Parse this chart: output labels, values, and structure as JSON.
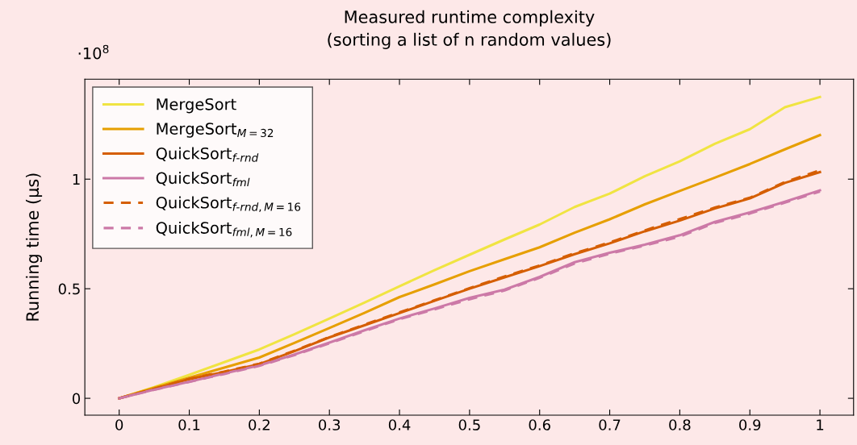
{
  "chart_data": {
    "type": "line",
    "title": "Measured runtime complexity\n(sorting a list of n random values)",
    "ylabel": "Running time (µs)",
    "annotations": [
      "·10$^{8}$"
    ],
    "x": [
      0,
      0.05,
      0.1,
      0.15,
      0.2,
      0.25,
      0.3,
      0.35,
      0.4,
      0.45,
      0.5,
      0.55,
      0.6,
      0.65,
      0.7,
      0.75,
      0.8,
      0.85,
      0.9,
      0.95,
      1
    ],
    "series": [
      {
        "name": "MergeSort",
        "color": "#f0e442",
        "line_style": "solid",
        "values": [
          0,
          0.051,
          0.107,
          0.165,
          0.223,
          0.292,
          0.364,
          0.437,
          0.511,
          0.585,
          0.655,
          0.725,
          0.793,
          0.873,
          0.934,
          1.013,
          1.081,
          1.161,
          1.228,
          1.328,
          1.375
        ]
      },
      {
        "name": "MergeSort$_{M=32}$",
        "color": "#e69f00",
        "line_style": "solid",
        "values": [
          0,
          0.048,
          0.094,
          0.14,
          0.186,
          0.253,
          0.321,
          0.39,
          0.462,
          0.52,
          0.58,
          0.635,
          0.689,
          0.756,
          0.817,
          0.885,
          0.946,
          1.007,
          1.069,
          1.136,
          1.201
        ]
      },
      {
        "name": "QuickSort$_{f‐rnd}$",
        "color": "#d55e00",
        "line_style": "solid",
        "values": [
          0,
          0.043,
          0.088,
          0.12,
          0.156,
          0.215,
          0.278,
          0.333,
          0.389,
          0.445,
          0.5,
          0.552,
          0.603,
          0.658,
          0.707,
          0.762,
          0.811,
          0.866,
          0.912,
          0.983,
          1.032
        ]
      },
      {
        "name": "QuickSort$_{fml}$",
        "color": "#cc79a7",
        "line_style": "solid",
        "values": [
          0,
          0.04,
          0.076,
          0.113,
          0.15,
          0.2,
          0.254,
          0.31,
          0.364,
          0.41,
          0.458,
          0.496,
          0.554,
          0.621,
          0.664,
          0.701,
          0.744,
          0.805,
          0.848,
          0.897,
          0.949
        ]
      },
      {
        "name": "QuickSort$_{f‐rnd,M=16}$",
        "color": "#d55e00",
        "line_style": "dashed",
        "values": [
          0,
          0.044,
          0.089,
          0.122,
          0.158,
          0.217,
          0.28,
          0.336,
          0.392,
          0.447,
          0.503,
          0.556,
          0.606,
          0.662,
          0.711,
          0.766,
          0.818,
          0.87,
          0.915,
          0.987,
          1.04
        ]
      },
      {
        "name": "QuickSort$_{fml,M=16}$",
        "color": "#cc79a7",
        "line_style": "dashed",
        "values": [
          0,
          0.039,
          0.075,
          0.111,
          0.148,
          0.197,
          0.251,
          0.306,
          0.361,
          0.406,
          0.452,
          0.492,
          0.55,
          0.615,
          0.66,
          0.697,
          0.738,
          0.8,
          0.843,
          0.893,
          0.944
        ]
      }
    ],
    "xlim": [
      -0.049,
      1.048
    ],
    "ylim": [
      -0.077,
      1.456
    ],
    "xticks": [
      0,
      0.1,
      0.2,
      0.3,
      0.4,
      0.5,
      0.6,
      0.7,
      0.8,
      0.9,
      1
    ],
    "yticks": [
      0,
      0.5,
      1
    ],
    "grid": false,
    "legend": "top left",
    "marker": "none"
  }
}
